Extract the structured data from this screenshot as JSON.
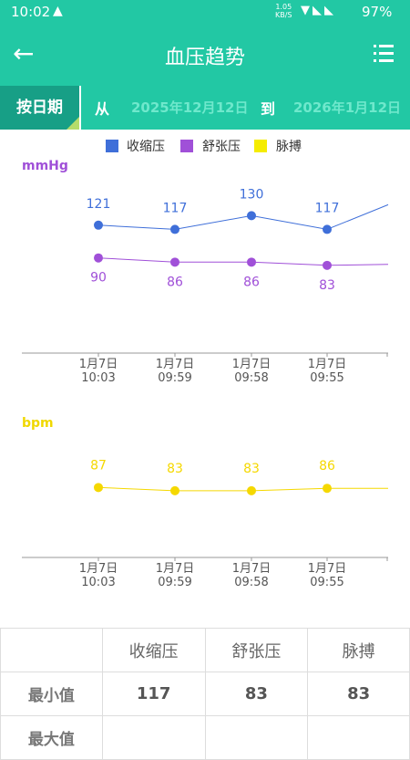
{
  "status": {
    "time": "10:02",
    "speed_top": "1.05",
    "speed_bottom": "KB/S",
    "battery": "97%"
  },
  "appbar": {
    "title": "血压趋势"
  },
  "datebar": {
    "mode": "按日期",
    "from_label": "从",
    "from_date": "2025年12月12日",
    "to_label": "到",
    "to_date": "2026年1月12日"
  },
  "legend": [
    {
      "label": "收缩压",
      "color": "#3f6fd9"
    },
    {
      "label": "舒张压",
      "color": "#a050d8"
    },
    {
      "label": "脉搏",
      "color": "#f5ec00"
    }
  ],
  "chart_data": [
    {
      "type": "line",
      "ylabel": "mmHg",
      "categories": [
        [
          "1月7日",
          "10:03"
        ],
        [
          "1月7日",
          "09:59"
        ],
        [
          "1月7日",
          "09:58"
        ],
        [
          "1月7日",
          "09:55"
        ]
      ],
      "series": [
        {
          "name": "收缩压",
          "values": [
            121,
            117,
            130,
            117
          ],
          "color": "#3f6fd9"
        },
        {
          "name": "舒张压",
          "values": [
            90,
            86,
            86,
            83
          ],
          "color": "#a050d8"
        }
      ],
      "ylim": [
        0,
        170
      ]
    },
    {
      "type": "line",
      "ylabel": "bpm",
      "categories": [
        [
          "1月7日",
          "10:03"
        ],
        [
          "1月7日",
          "09:59"
        ],
        [
          "1月7日",
          "09:58"
        ],
        [
          "1月7日",
          "09:55"
        ]
      ],
      "series": [
        {
          "name": "脉搏",
          "values": [
            87,
            83,
            83,
            86
          ],
          "color": "#f5d800"
        }
      ],
      "ylim": [
        0,
        160
      ]
    }
  ],
  "table": {
    "headers": [
      "",
      "收缩压",
      "舒张压",
      "脉搏"
    ],
    "rows": [
      [
        "最小值",
        "117",
        "83",
        "83"
      ],
      [
        "最大值",
        "",
        "",
        ""
      ]
    ]
  }
}
